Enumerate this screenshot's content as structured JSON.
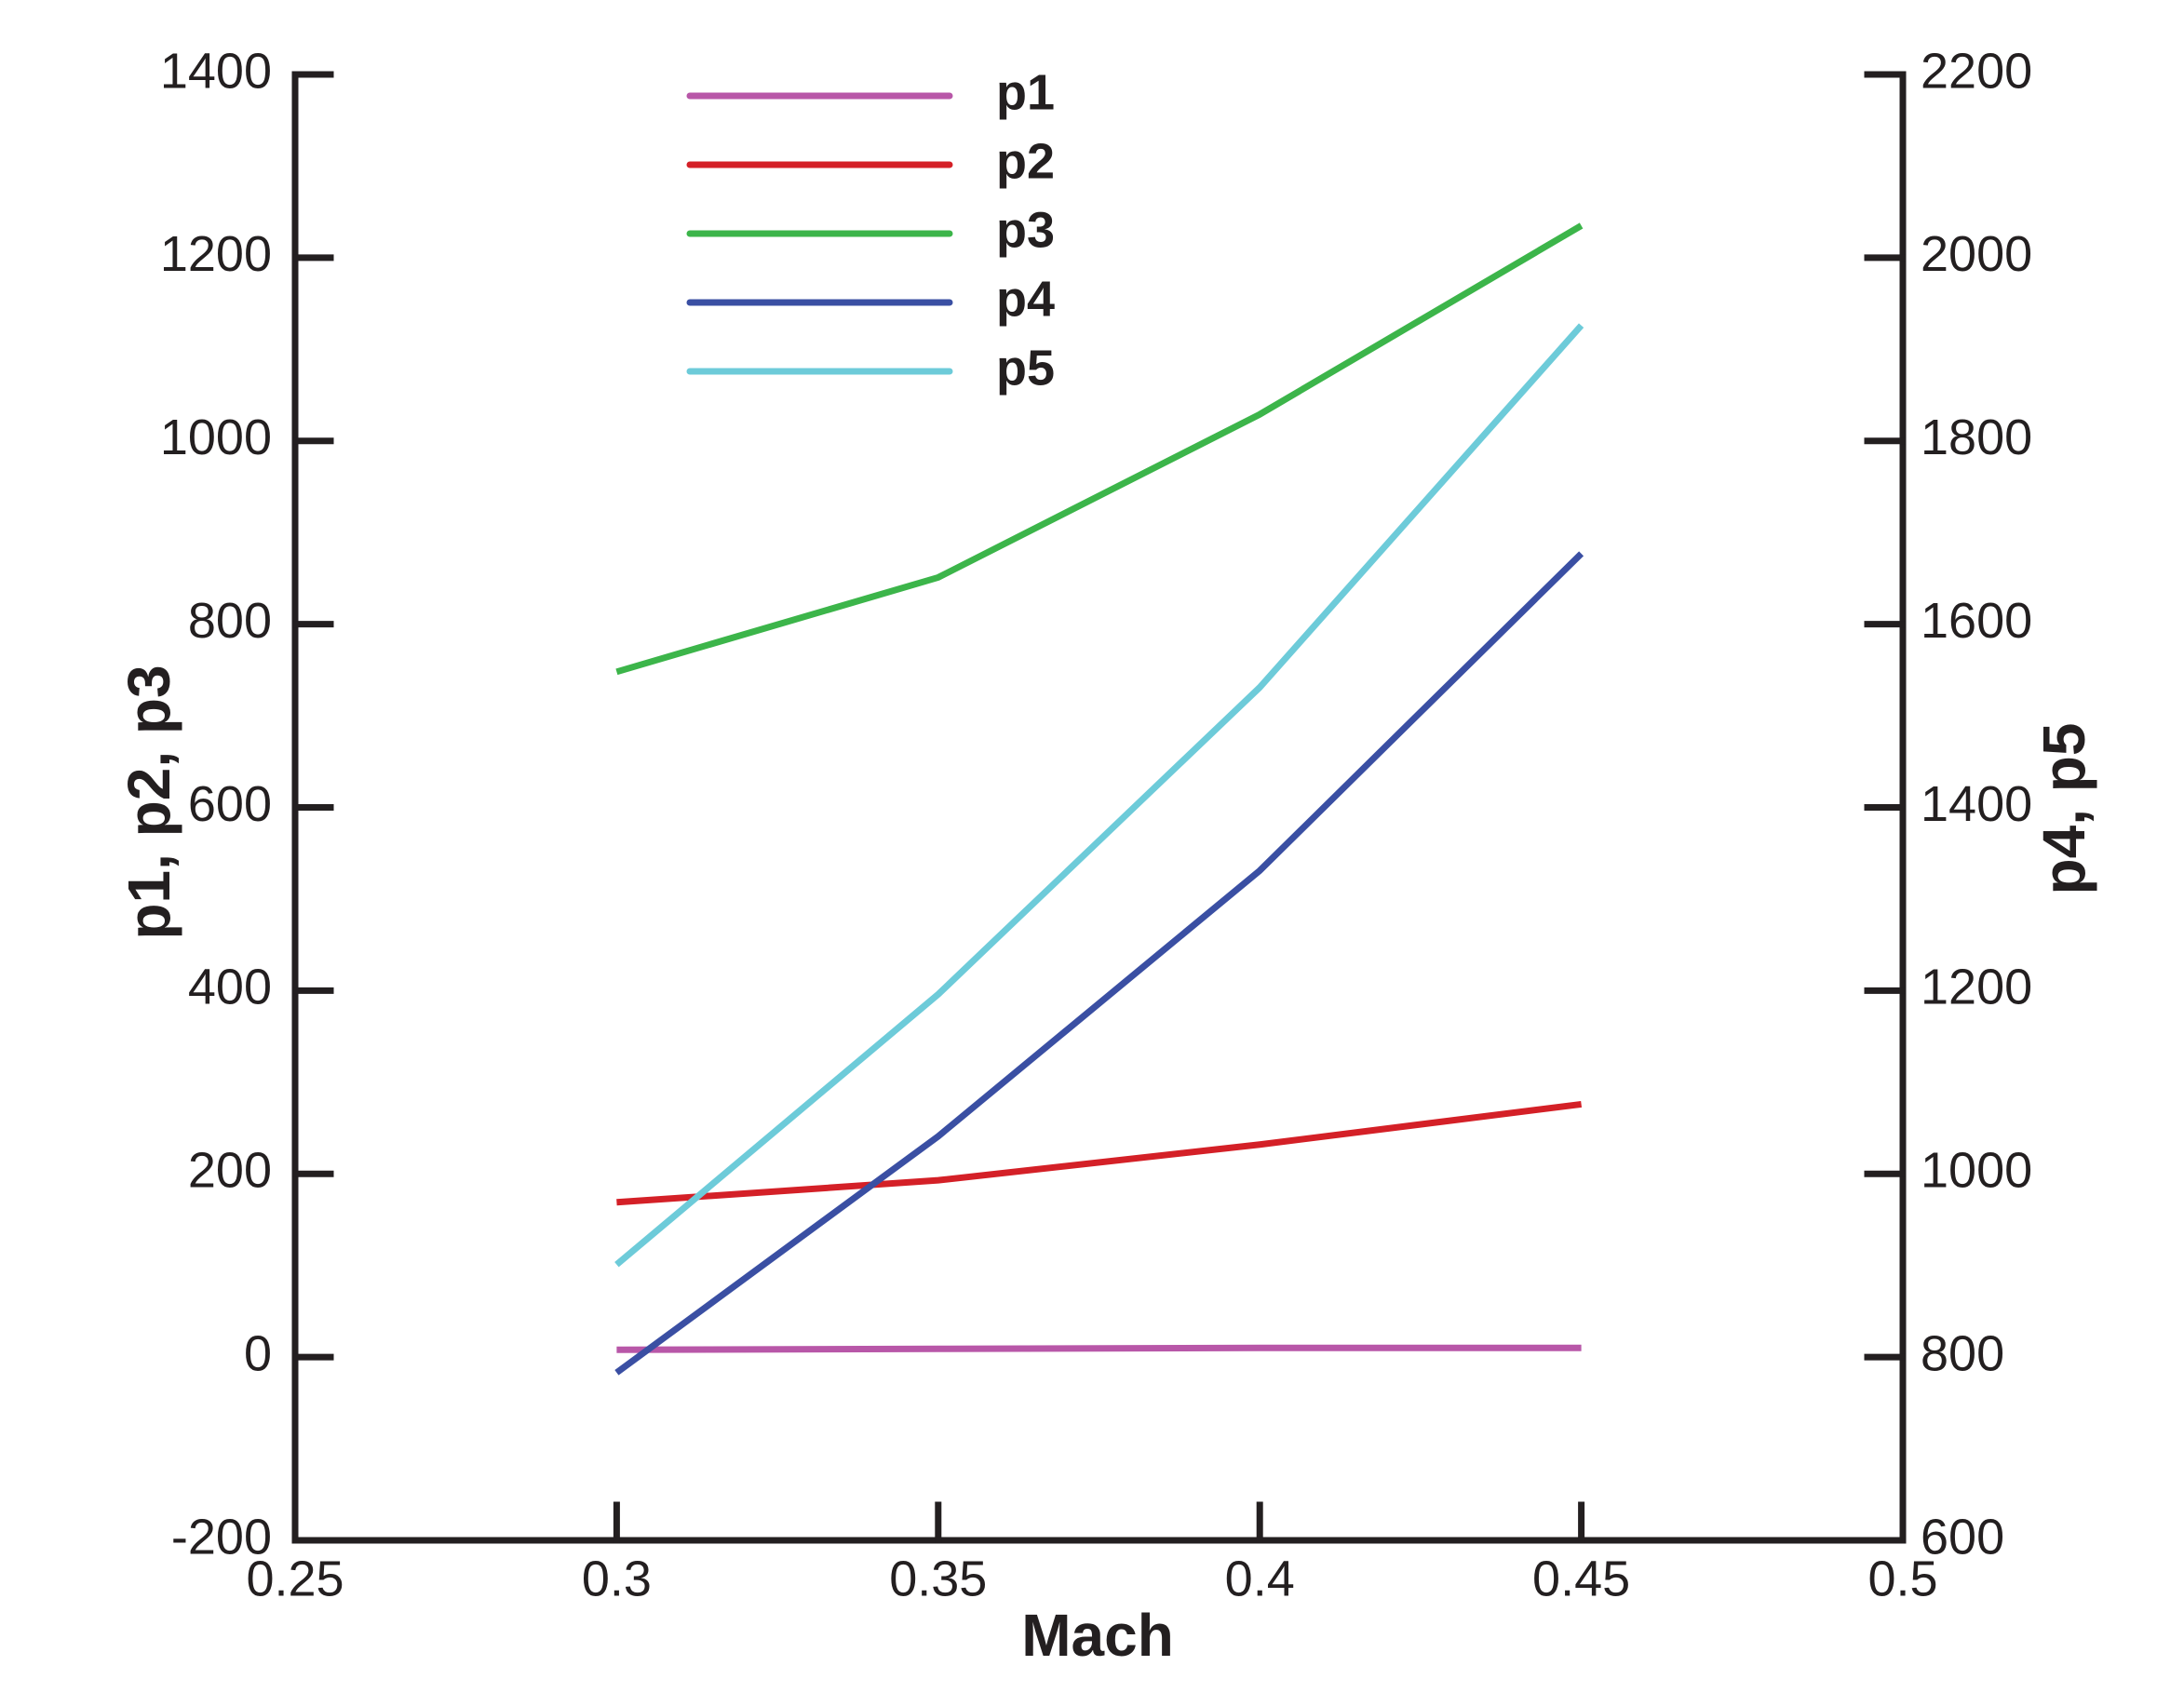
{
  "chart_data": {
    "type": "line",
    "x_label": "Mach",
    "y_label": "p1, p2, p3",
    "y2_label": "p4, p5",
    "x": [
      0.3,
      0.35,
      0.4,
      0.45
    ],
    "xlim": [
      0.25,
      0.5
    ],
    "xticks": [
      0.25,
      0.3,
      0.35,
      0.4,
      0.45,
      0.5
    ],
    "ylim": [
      -200,
      1400
    ],
    "yticks": [
      -200,
      0,
      200,
      400,
      600,
      800,
      1000,
      1200,
      1400
    ],
    "y2lim": [
      600,
      2200
    ],
    "y2ticks": [
      600,
      800,
      1000,
      1200,
      1400,
      1600,
      1800,
      2000,
      2200
    ],
    "series": [
      {
        "name": "p1",
        "color": "#b857a8",
        "values": [
          8,
          9,
          10,
          10
        ]
      },
      {
        "name": "p2",
        "color": "#d42027",
        "values": [
          169,
          193,
          232,
          276
        ]
      },
      {
        "name": "p3",
        "color": "#3cb54a",
        "values": [
          748,
          851,
          1029,
          1235
        ]
      },
      {
        "name": "p4",
        "color": "#3a4fa3",
        "axis": "y2",
        "values": [
          783,
          1041,
          1331,
          1677
        ]
      },
      {
        "name": "p5",
        "color": "#6dcbd9",
        "axis": "y2",
        "values": [
          901,
          1196,
          1531,
          1926
        ]
      }
    ]
  }
}
